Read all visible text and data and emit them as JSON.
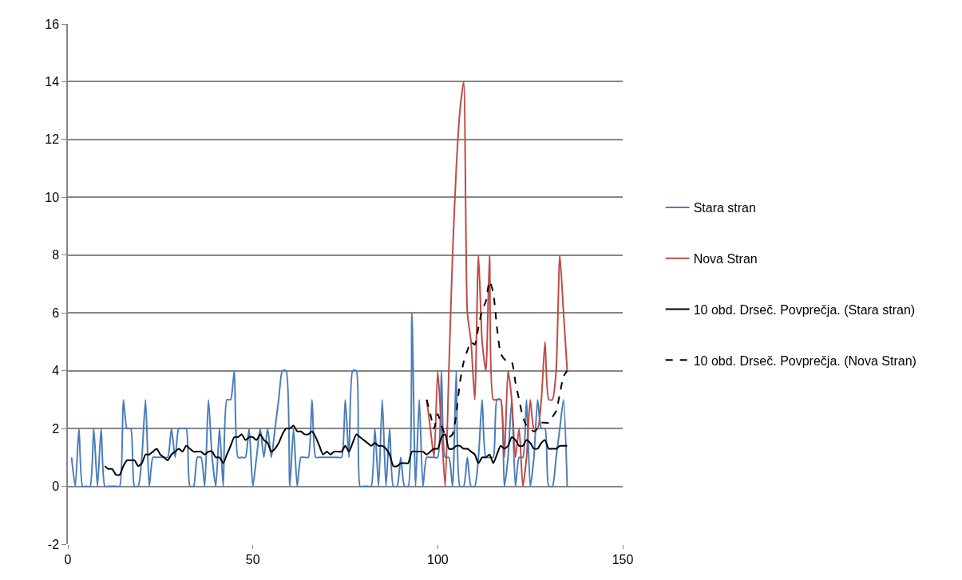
{
  "chart_data": {
    "type": "line",
    "xlim": [
      0,
      150
    ],
    "xticks": [
      0,
      50,
      100,
      150
    ],
    "ylim": [
      -2,
      16
    ],
    "yticks": [
      -2,
      0,
      2,
      4,
      6,
      8,
      10,
      12,
      14,
      16
    ],
    "grid": "y",
    "legend": "right",
    "series": [
      {
        "name": "Stara stran",
        "color": "#4a7ebb",
        "x": [
          1,
          2,
          3,
          4,
          5,
          6,
          7,
          8,
          9,
          10,
          11,
          12,
          13,
          14,
          15,
          16,
          17,
          18,
          19,
          20,
          21,
          22,
          23,
          24,
          25,
          26,
          27,
          28,
          29,
          30,
          31,
          32,
          33,
          34,
          35,
          36,
          37,
          38,
          39,
          40,
          41,
          42,
          43,
          44,
          45,
          46,
          47,
          48,
          49,
          50,
          51,
          52,
          53,
          54,
          55,
          56,
          57,
          58,
          59,
          60,
          61,
          62,
          63,
          64,
          65,
          66,
          67,
          68,
          69,
          70,
          71,
          72,
          73,
          74,
          75,
          76,
          77,
          78,
          79,
          80,
          81,
          82,
          83,
          84,
          85,
          86,
          87,
          88,
          89,
          90,
          91,
          92,
          93,
          94,
          95,
          96,
          97,
          98,
          99,
          100,
          101,
          102,
          103,
          104,
          105,
          106,
          107,
          108,
          109,
          110,
          111,
          112,
          113,
          114,
          115,
          116,
          117,
          118,
          119,
          120,
          121,
          122,
          123,
          124,
          125,
          126,
          127,
          128,
          129,
          130,
          131,
          132,
          133,
          134,
          135
        ],
        "values": [
          1,
          0,
          2,
          0,
          0,
          0,
          2,
          0,
          2,
          0,
          0,
          0,
          0,
          0,
          3,
          2,
          2,
          0,
          0,
          1,
          3,
          0,
          1,
          1,
          1,
          1,
          1,
          2,
          1,
          2,
          2,
          2,
          0,
          0,
          1,
          1,
          0,
          3,
          1,
          0,
          2,
          0,
          3,
          3,
          4,
          1,
          1,
          1,
          2,
          0,
          1,
          2,
          1,
          2,
          1,
          2,
          3,
          4,
          4,
          0,
          2,
          0,
          1,
          1,
          1,
          3,
          1,
          1,
          1,
          1,
          1,
          1,
          1,
          1,
          3,
          1,
          4,
          4,
          0,
          0,
          0,
          0,
          2,
          0,
          3,
          0,
          2,
          0,
          0,
          1,
          0,
          0,
          6,
          0,
          3,
          0,
          1,
          1,
          1,
          1,
          4,
          1,
          1,
          0,
          4,
          0,
          0,
          1,
          0,
          0,
          1,
          3,
          1,
          1,
          1,
          3,
          3,
          0,
          1,
          3,
          0,
          1,
          1,
          3,
          0,
          1,
          3,
          2,
          2,
          0,
          0,
          1,
          2,
          3,
          0
        ]
      },
      {
        "name": "Nova Stran",
        "color": "#be4b48",
        "x": [
          97,
          98,
          99,
          100,
          101,
          102,
          103,
          104,
          105,
          106,
          107,
          108,
          109,
          110,
          111,
          112,
          113,
          114,
          115,
          116,
          117,
          118,
          119,
          120,
          121,
          122,
          123,
          124,
          125,
          126,
          127,
          128,
          129,
          130,
          131,
          132,
          133,
          134,
          135
        ],
        "values": [
          3,
          2,
          1,
          4,
          2,
          0,
          4,
          8,
          11,
          13,
          14,
          6,
          5,
          3,
          8,
          5,
          4,
          8,
          3,
          3,
          3,
          1,
          4,
          3,
          1,
          2,
          0,
          1,
          3,
          2,
          2,
          3,
          5,
          3,
          3,
          4,
          8,
          6,
          4
        ]
      },
      {
        "name": "10 obd. Drseč. Povprečja. (Stara stran)",
        "color": "#000000",
        "line_style": "solid",
        "x": [
          10,
          11,
          12,
          13,
          14,
          15,
          16,
          17,
          18,
          19,
          20,
          21,
          22,
          23,
          24,
          25,
          26,
          27,
          28,
          29,
          30,
          31,
          32,
          33,
          34,
          35,
          36,
          37,
          38,
          39,
          40,
          41,
          42,
          43,
          44,
          45,
          46,
          47,
          48,
          49,
          50,
          51,
          52,
          53,
          54,
          55,
          56,
          57,
          58,
          59,
          60,
          61,
          62,
          63,
          64,
          65,
          66,
          67,
          68,
          69,
          70,
          71,
          72,
          73,
          74,
          75,
          76,
          77,
          78,
          79,
          80,
          81,
          82,
          83,
          84,
          85,
          86,
          87,
          88,
          89,
          90,
          91,
          92,
          93,
          94,
          95,
          96,
          97,
          98,
          99,
          100,
          101,
          102,
          103,
          104,
          105,
          106,
          107,
          108,
          109,
          110,
          111,
          112,
          113,
          114,
          115,
          116,
          117,
          118,
          119,
          120,
          121,
          122,
          123,
          124,
          125,
          126,
          127,
          128,
          129,
          130,
          131,
          132,
          133,
          134,
          135
        ],
        "values": [
          0.7,
          0.6,
          0.6,
          0.4,
          0.4,
          0.7,
          0.9,
          0.9,
          0.9,
          0.7,
          0.8,
          1.1,
          1.1,
          1.2,
          1.3,
          1.1,
          1.0,
          0.9,
          1.1,
          1.2,
          1.3,
          1.2,
          1.4,
          1.3,
          1.2,
          1.2,
          1.2,
          1.1,
          1.2,
          1.2,
          1.0,
          1.0,
          0.8,
          1.1,
          1.4,
          1.7,
          1.7,
          1.8,
          1.6,
          1.7,
          1.7,
          1.6,
          1.8,
          1.6,
          1.5,
          1.2,
          1.3,
          1.5,
          1.8,
          2.0,
          2.0,
          2.1,
          1.9,
          1.9,
          1.8,
          1.8,
          1.9,
          1.7,
          1.4,
          1.1,
          1.2,
          1.1,
          1.2,
          1.2,
          1.2,
          1.4,
          1.2,
          1.5,
          1.8,
          1.7,
          1.6,
          1.5,
          1.4,
          1.5,
          1.4,
          1.4,
          1.3,
          1.1,
          0.7,
          0.7,
          0.8,
          0.8,
          0.8,
          1.2,
          1.2,
          1.2,
          1.2,
          1.1,
          1.2,
          1.3,
          1.3,
          1.7,
          1.8,
          1.3,
          1.3,
          1.4,
          1.4,
          1.3,
          1.3,
          1.2,
          1.1,
          0.8,
          1.0,
          1.0,
          1.1,
          0.8,
          1.1,
          1.4,
          1.3,
          1.4,
          1.7,
          1.6,
          1.4,
          1.4,
          1.6,
          1.5,
          1.3,
          1.3,
          1.5,
          1.6,
          1.3,
          1.3,
          1.3,
          1.4,
          1.4,
          1.4
        ]
      },
      {
        "name": "10 obd. Drseč. Povprečja. (Nova Stran)",
        "color": "#000000",
        "line_style": "dashed",
        "x": [
          97,
          98,
          99,
          100,
          101,
          102,
          103,
          104,
          105,
          106,
          107,
          108,
          109,
          110,
          111,
          112,
          113,
          114,
          115,
          116,
          117,
          118,
          119,
          120,
          121,
          122,
          123,
          124,
          125,
          126,
          127,
          128,
          129,
          130,
          131,
          132,
          133,
          134,
          135
        ],
        "values": [
          3.0,
          2.5,
          2.0,
          2.5,
          2.1,
          1.8,
          1.7,
          1.8,
          2.5,
          3.6,
          4.3,
          4.7,
          5.0,
          4.9,
          5.5,
          6.1,
          6.4,
          7.1,
          6.7,
          5.5,
          4.6,
          4.4,
          4.3,
          4.3,
          3.6,
          3.0,
          2.4,
          2.1,
          2.0,
          1.9,
          2.0,
          2.2,
          2.2,
          2.2,
          2.4,
          2.6,
          3.2,
          3.8,
          4.0
        ]
      }
    ]
  }
}
